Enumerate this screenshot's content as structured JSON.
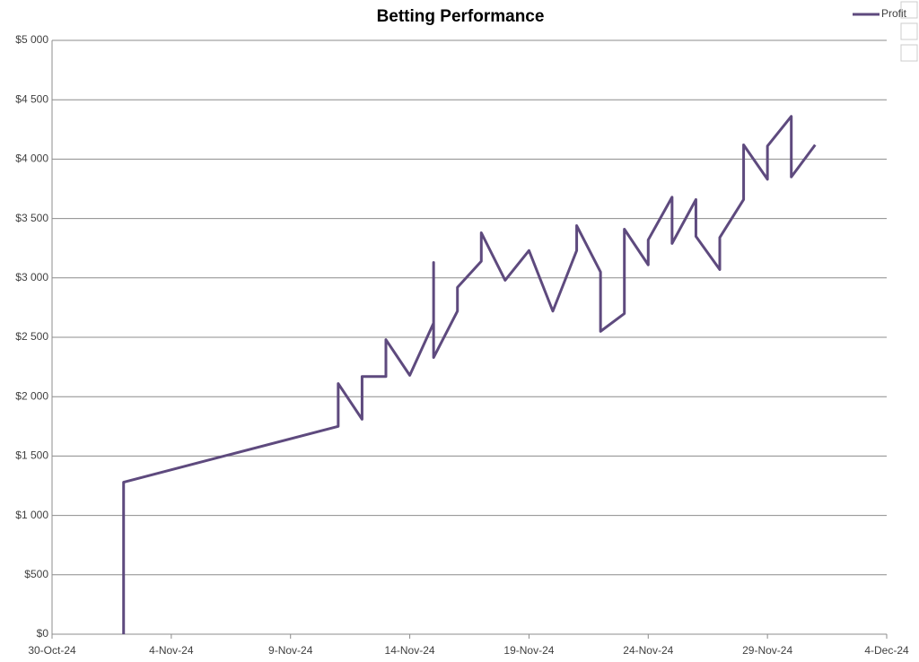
{
  "chart_data": {
    "type": "line",
    "title": "Betting Performance",
    "x": [
      "2024-11-02",
      "2024-11-02",
      "2024-11-11",
      "2024-11-11",
      "2024-11-12",
      "2024-11-12",
      "2024-11-13",
      "2024-11-13",
      "2024-11-14",
      "2024-11-15",
      "2024-11-15",
      "2024-11-15",
      "2024-11-16",
      "2024-11-16",
      "2024-11-17",
      "2024-11-17",
      "2024-11-18",
      "2024-11-19",
      "2024-11-20",
      "2024-11-21",
      "2024-11-21",
      "2024-11-22",
      "2024-11-22",
      "2024-11-23",
      "2024-11-23",
      "2024-11-24",
      "2024-11-24",
      "2024-11-25",
      "2024-11-25",
      "2024-11-26",
      "2024-11-26",
      "2024-11-27",
      "2024-11-27",
      "2024-11-28",
      "2024-11-28",
      "2024-11-29",
      "2024-11-29",
      "2024-11-30",
      "2024-11-30",
      "2024-12-01"
    ],
    "series": [
      {
        "name": "Profit",
        "color": "#5e4a7e",
        "values": [
          0,
          1280,
          1750,
          2110,
          1810,
          2170,
          2170,
          2480,
          2180,
          2620,
          3130,
          2330,
          2720,
          2920,
          3140,
          3380,
          2980,
          3230,
          2720,
          3230,
          3440,
          3050,
          2550,
          2700,
          3410,
          3110,
          3320,
          3680,
          3290,
          3660,
          3350,
          3070,
          3340,
          3660,
          4120,
          3830,
          4110,
          4360,
          3850,
          4120
        ]
      }
    ],
    "xlim": [
      "2024-10-30",
      "2024-12-04"
    ],
    "xticks": [
      {
        "value": "2024-10-30",
        "label": "30-Oct-24"
      },
      {
        "value": "2024-11-04",
        "label": "4-Nov-24"
      },
      {
        "value": "2024-11-09",
        "label": "9-Nov-24"
      },
      {
        "value": "2024-11-14",
        "label": "14-Nov-24"
      },
      {
        "value": "2024-11-19",
        "label": "19-Nov-24"
      },
      {
        "value": "2024-11-24",
        "label": "24-Nov-24"
      },
      {
        "value": "2024-11-29",
        "label": "29-Nov-24"
      },
      {
        "value": "2024-12-04",
        "label": "4-Dec-24"
      }
    ],
    "ylim": [
      0,
      5000
    ],
    "yticks": [
      {
        "value": 0,
        "label": "$0"
      },
      {
        "value": 500,
        "label": "$500"
      },
      {
        "value": 1000,
        "label": "$1 000"
      },
      {
        "value": 1500,
        "label": "$1 500"
      },
      {
        "value": 2000,
        "label": "$2 000"
      },
      {
        "value": 2500,
        "label": "$2 500"
      },
      {
        "value": 3000,
        "label": "$3 000"
      },
      {
        "value": 3500,
        "label": "$3 500"
      },
      {
        "value": 4000,
        "label": "$4 000"
      },
      {
        "value": 4500,
        "label": "$4 500"
      },
      {
        "value": 5000,
        "label": "$5 000"
      }
    ],
    "grid": true,
    "legend": "top-right"
  }
}
